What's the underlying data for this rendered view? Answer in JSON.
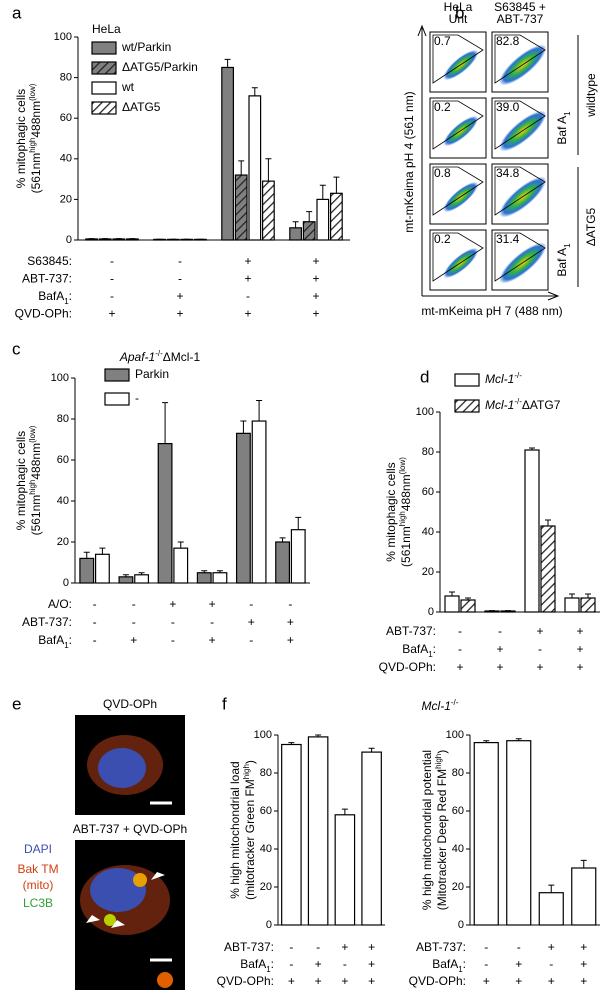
{
  "panel_labels": [
    "a",
    "b",
    "c",
    "d",
    "e",
    "f"
  ],
  "chart_data": [
    {
      "type": "bar",
      "legend_title": "HeLa",
      "ylabel": [
        "% mitophagic cells",
        [
          {
            "text": "(561nm"
          },
          {
            "text": "high",
            "sup": true
          },
          {
            "text": "488nm"
          },
          {
            "text": "(low)",
            "sup": true
          }
        ]
      ],
      "ylim": [
        0,
        100
      ],
      "yticks": [
        0,
        20,
        40,
        60,
        80,
        100
      ],
      "series": [
        {
          "name": "wt/Parkin",
          "color": "#808080",
          "hatch": false,
          "values": [
            0.5,
            0.3,
            85,
            6
          ],
          "errors": [
            0.2,
            0.1,
            4,
            3
          ]
        },
        {
          "name": "ΔATG5/Parkin",
          "color": "#808080",
          "hatch": true,
          "values": [
            0.5,
            0.3,
            32,
            9
          ],
          "errors": [
            0.2,
            0.1,
            7,
            5
          ]
        },
        {
          "name": "wt",
          "color": "#ffffff",
          "hatch": false,
          "values": [
            0.5,
            0.3,
            71,
            20
          ],
          "errors": [
            0.2,
            0.1,
            4,
            7
          ]
        },
        {
          "name": "ΔATG5",
          "color": "#ffffff",
          "hatch": true,
          "values": [
            0.5,
            0.3,
            29,
            23
          ],
          "errors": [
            0.2,
            0.1,
            11,
            8
          ]
        }
      ],
      "conditions": [
        {
          "label": "S63845:",
          "marks": [
            "-",
            "-",
            "+",
            "+"
          ]
        },
        {
          "label": "ABT-737:",
          "marks": [
            "-",
            "-",
            "+",
            "+"
          ]
        },
        {
          "label": [
            {
              "text": "BafA"
            },
            {
              "text": "1",
              "sub": true
            },
            {
              "text": ":"
            }
          ],
          "marks": [
            "-",
            "+",
            "-",
            "+"
          ]
        },
        {
          "label": "QVD-OPh:",
          "marks": [
            "+",
            "+",
            "+",
            "+"
          ]
        }
      ]
    },
    {
      "type": "bar",
      "title": [
        {
          "text": "Apaf-1",
          "italic": true
        },
        {
          "text": "-/-",
          "sup": true
        },
        {
          "text": "ΔMcl-1"
        }
      ],
      "ylabel": [
        "% mitophagic cells",
        [
          {
            "text": "(561nm"
          },
          {
            "text": "high",
            "sup": true
          },
          {
            "text": "488nm"
          },
          {
            "text": "(low)",
            "sup": true
          }
        ]
      ],
      "ylim": [
        0,
        100
      ],
      "yticks": [
        0,
        20,
        40,
        60,
        80,
        100
      ],
      "series": [
        {
          "name": "Parkin",
          "color": "#808080",
          "hatch": false,
          "values": [
            12,
            3,
            68,
            5,
            73,
            20
          ],
          "errors": [
            3,
            1,
            20,
            1,
            6,
            2
          ]
        },
        {
          "name": "-",
          "color": "#ffffff",
          "hatch": false,
          "values": [
            14,
            4,
            17,
            5,
            79,
            26
          ],
          "errors": [
            3,
            1,
            3,
            1,
            10,
            6
          ]
        }
      ],
      "conditions": [
        {
          "label": "A/O:",
          "marks": [
            "-",
            "-",
            "+",
            "+",
            "-",
            "-"
          ]
        },
        {
          "label": "ABT-737:",
          "marks": [
            "-",
            "-",
            "-",
            "-",
            "+",
            "+"
          ]
        },
        {
          "label": [
            {
              "text": "BafA"
            },
            {
              "text": "1",
              "sub": true
            },
            {
              "text": ":"
            }
          ],
          "marks": [
            "-",
            "+",
            "-",
            "+",
            "-",
            "+"
          ]
        }
      ]
    },
    {
      "type": "bar",
      "ylabel": [
        "% mitophagic cells",
        [
          {
            "text": "(561nm"
          },
          {
            "text": "high",
            "sup": true
          },
          {
            "text": "488nm"
          },
          {
            "text": "(low)",
            "sup": true
          }
        ]
      ],
      "ylim": [
        0,
        100
      ],
      "yticks": [
        0,
        20,
        40,
        60,
        80,
        100
      ],
      "series": [
        {
          "name": [
            {
              "text": "Mcl-1",
              "italic": true
            },
            {
              "text": "-/-",
              "sup": true
            }
          ],
          "color": "#ffffff",
          "hatch": false,
          "values": [
            8,
            0.5,
            81,
            7
          ],
          "errors": [
            2,
            0.2,
            1,
            2
          ]
        },
        {
          "name": [
            {
              "text": "Mcl-1",
              "italic": true
            },
            {
              "text": "-/-",
              "sup": true
            },
            {
              "text": "ΔATG7"
            }
          ],
          "color": "#ffffff",
          "hatch": true,
          "values": [
            6,
            0.5,
            43,
            7
          ],
          "errors": [
            1,
            0.2,
            3,
            2
          ]
        }
      ],
      "conditions": [
        {
          "label": "ABT-737:",
          "marks": [
            "-",
            "-",
            "+",
            "+"
          ]
        },
        {
          "label": [
            {
              "text": "BafA"
            },
            {
              "text": "1",
              "sub": true
            },
            {
              "text": ":"
            }
          ],
          "marks": [
            "-",
            "+",
            "-",
            "+"
          ]
        },
        {
          "label": "QVD-OPh:",
          "marks": [
            "+",
            "+",
            "+",
            "+"
          ]
        }
      ]
    },
    {
      "type": "bar",
      "title": [
        {
          "text": "Mcl-1",
          "italic": true
        },
        {
          "text": "-/-",
          "sup": true
        }
      ],
      "ylabel": [
        "% high mitochondrial load",
        [
          {
            "text": "(mitotracker Green FM"
          },
          {
            "text": "high",
            "sup": true
          },
          {
            "text": ")"
          }
        ]
      ],
      "ylim": [
        0,
        100
      ],
      "yticks": [
        0,
        20,
        40,
        60,
        80,
        100
      ],
      "series": [
        {
          "name": null,
          "color": "#ffffff",
          "hatch": false,
          "values": [
            95,
            99,
            58,
            91
          ],
          "errors": [
            1,
            1,
            3,
            2
          ]
        }
      ],
      "conditions": [
        {
          "label": "ABT-737:",
          "marks": [
            "-",
            "-",
            "+",
            "+"
          ]
        },
        {
          "label": [
            {
              "text": "BafA"
            },
            {
              "text": "1",
              "sub": true
            },
            {
              "text": ":"
            }
          ],
          "marks": [
            "-",
            "+",
            "-",
            "+"
          ]
        },
        {
          "label": "QVD-OPh:",
          "marks": [
            "+",
            "+",
            "+",
            "+"
          ]
        }
      ]
    },
    {
      "type": "bar",
      "ylabel": [
        "% high mitochondrial potential",
        [
          {
            "text": "(Mitotracker Deep Red FM"
          },
          {
            "text": "high",
            "sup": true
          },
          {
            "text": ")"
          }
        ]
      ],
      "ylim": [
        0,
        100
      ],
      "yticks": [
        0,
        20,
        40,
        60,
        80,
        100
      ],
      "series": [
        {
          "name": null,
          "color": "#ffffff",
          "hatch": false,
          "values": [
            96,
            97,
            17,
            30
          ],
          "errors": [
            1,
            1,
            4,
            4
          ]
        }
      ],
      "conditions": [
        {
          "label": "ABT-737:",
          "marks": [
            "-",
            "-",
            "+",
            "+"
          ]
        },
        {
          "label": [
            {
              "text": "BafA"
            },
            {
              "text": "1",
              "sub": true
            },
            {
              "text": ":"
            }
          ],
          "marks": [
            "-",
            "+",
            "-",
            "+"
          ]
        },
        {
          "label": "QVD-OPh:",
          "marks": [
            "+",
            "+",
            "+",
            "+"
          ]
        }
      ]
    }
  ],
  "flow": {
    "col_headers": [
      [
        "HeLa",
        "Unt"
      ],
      [
        "S63845 +",
        "ABT-737"
      ]
    ],
    "gates": [
      [
        "0.7",
        "82.8"
      ],
      [
        "0.2",
        "39.0"
      ],
      [
        "0.8",
        "34.8"
      ],
      [
        "0.2",
        "31.4"
      ]
    ],
    "baf_labels": [
      [
        {
          "text": "Baf A"
        },
        {
          "text": "1",
          "sub": true
        }
      ],
      [
        {
          "text": "Baf A"
        },
        {
          "text": "1",
          "sub": true
        }
      ]
    ],
    "genotypes": [
      "wildtype",
      "ΔATG5"
    ],
    "ylabel": "mt-mKeima pH 4 (561 nm)",
    "xlabel": "mt-mKeima pH 7 (488 nm)"
  },
  "microscopy": {
    "titles": [
      "QVD-OPh",
      "ABT-737 + QVD-OPh"
    ],
    "channels": [
      "DAPI",
      "Bak TM",
      "(mito)",
      "LC3B"
    ]
  }
}
